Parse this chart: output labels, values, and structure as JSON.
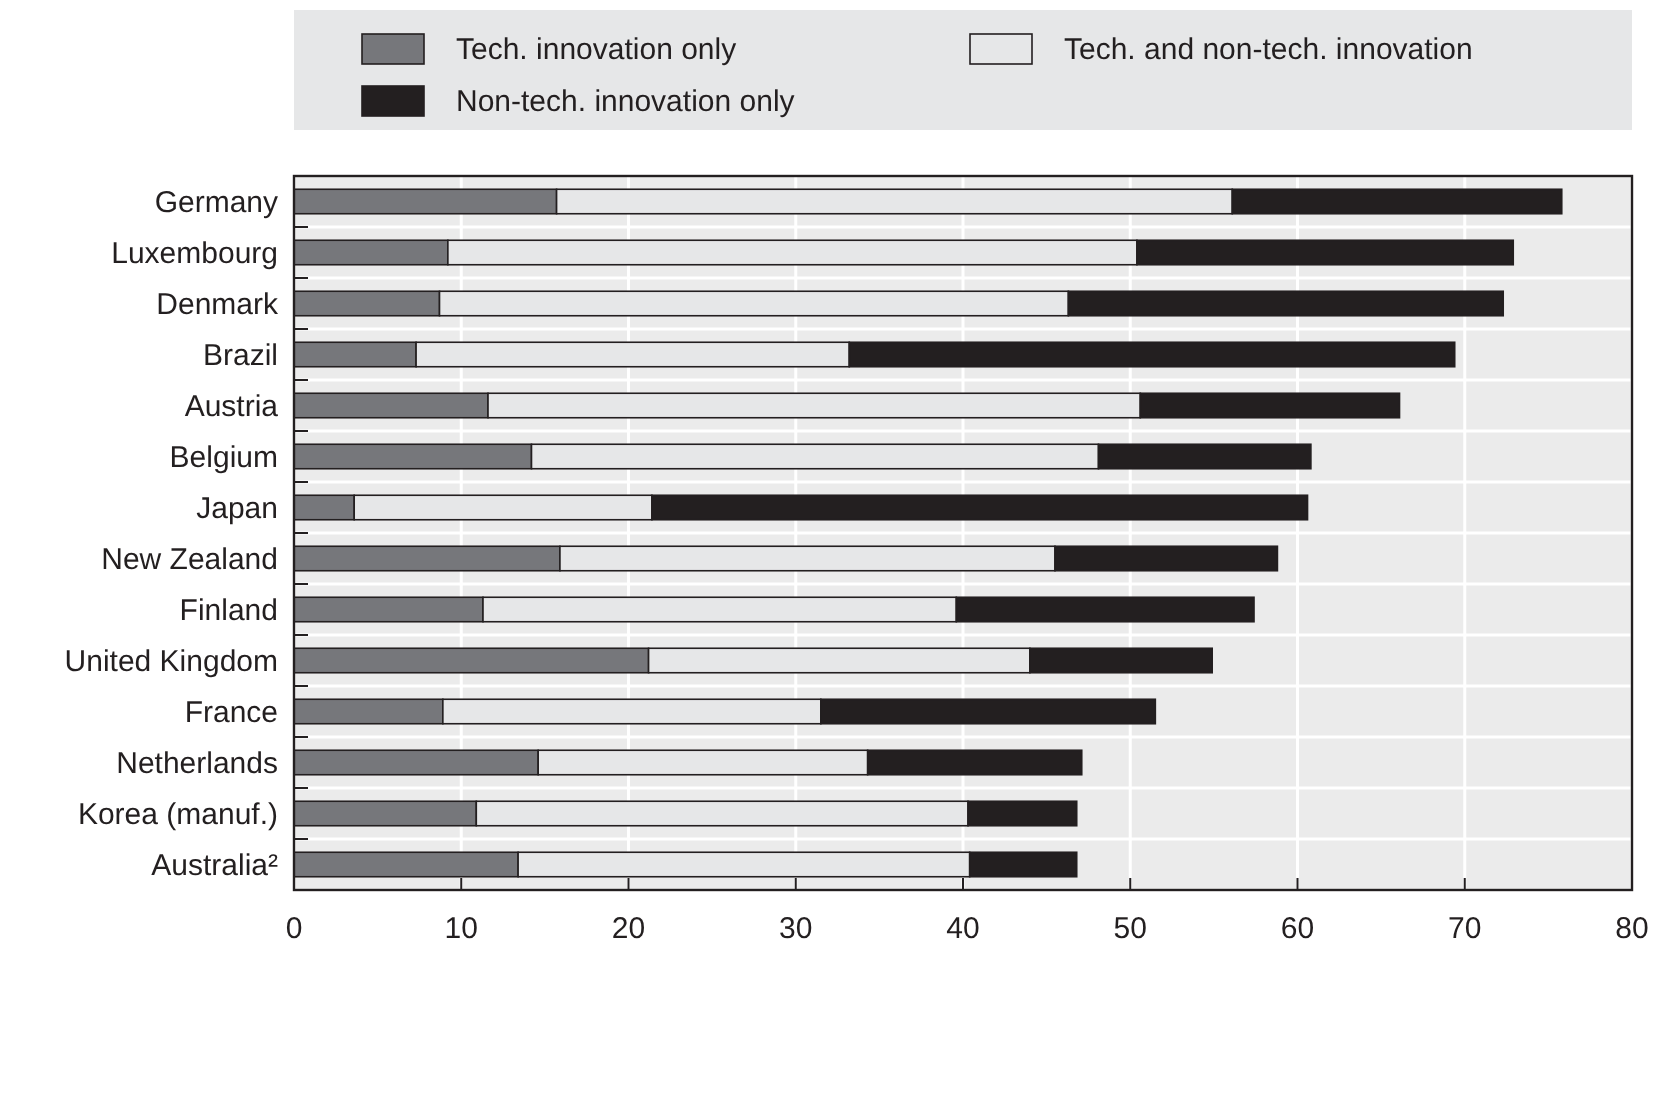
{
  "chart_data": {
    "type": "bar",
    "orientation": "horizontal",
    "stacked": true,
    "categories": [
      "Germany",
      "Luxembourg",
      "Denmark",
      "Brazil",
      "Austria",
      "Belgium",
      "Japan",
      "New Zealand",
      "Finland",
      "United Kingdom",
      "France",
      "Netherlands",
      "Korea (manuf.)",
      "Australia²"
    ],
    "series": [
      {
        "name": "Tech. innovation only",
        "color": "#76777b",
        "values": [
          15.7,
          9.2,
          8.7,
          7.3,
          11.6,
          14.2,
          3.6,
          15.9,
          11.3,
          21.2,
          8.9,
          14.6,
          10.9,
          13.4
        ]
      },
      {
        "name": "Tech. and non-tech. innovation",
        "color": "#e6e7e8",
        "values": [
          40.4,
          41.2,
          37.6,
          25.9,
          39.0,
          33.9,
          17.8,
          29.6,
          28.3,
          22.8,
          22.6,
          19.7,
          29.4,
          27.0
        ]
      },
      {
        "name": "Non-tech. innovation only",
        "color": "#231f20",
        "values": [
          19.7,
          22.5,
          26.0,
          36.2,
          15.5,
          12.7,
          39.2,
          13.3,
          17.8,
          10.9,
          20.0,
          12.8,
          6.5,
          6.4
        ]
      }
    ],
    "xlim": [
      0,
      80
    ],
    "xticks": [
      0,
      10,
      20,
      30,
      40,
      50,
      60,
      70,
      80
    ],
    "grid": "x",
    "legend": "top"
  }
}
